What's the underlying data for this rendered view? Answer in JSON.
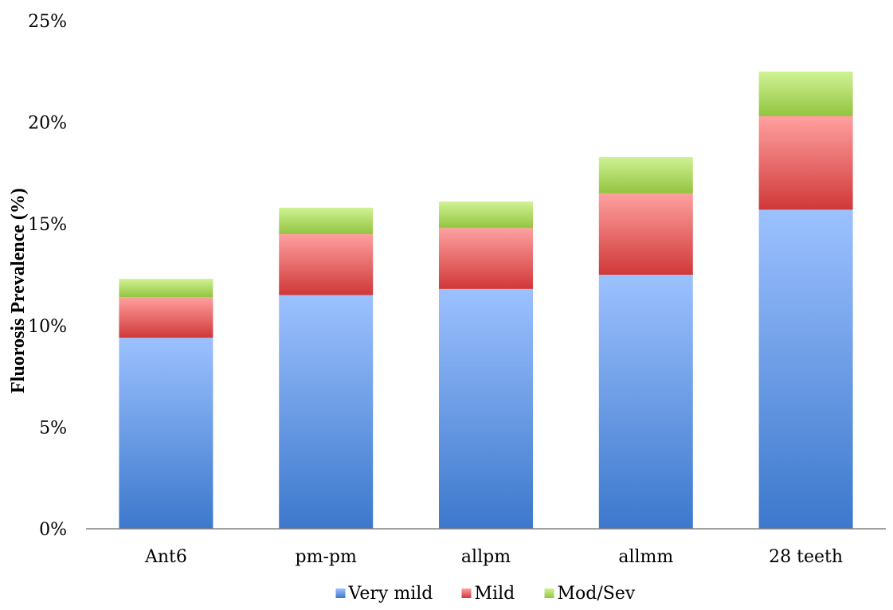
{
  "chart_data": {
    "type": "bar",
    "stacked": true,
    "title": "",
    "xlabel": "",
    "ylabel": "Fluorosis Prevalence (%)",
    "ylim": [
      0,
      25
    ],
    "y_ticks": [
      "0%",
      "5%",
      "10%",
      "15%",
      "20%",
      "25%"
    ],
    "grid": false,
    "legend_position": "bottom",
    "categories": [
      "Ant6",
      "pm-pm",
      "allpm",
      "allmm",
      "28 teeth"
    ],
    "series": [
      {
        "name": "Very mild",
        "values": [
          9.4,
          11.5,
          11.8,
          12.5,
          15.7
        ],
        "color": "#4a7fd4"
      },
      {
        "name": "Mild",
        "values": [
          2.0,
          3.0,
          3.0,
          4.0,
          4.6
        ],
        "color": "#d84a4a"
      },
      {
        "name": "Mod/Sev",
        "values": [
          0.9,
          1.3,
          1.3,
          1.8,
          2.2
        ],
        "color": "#a6d060"
      }
    ]
  }
}
